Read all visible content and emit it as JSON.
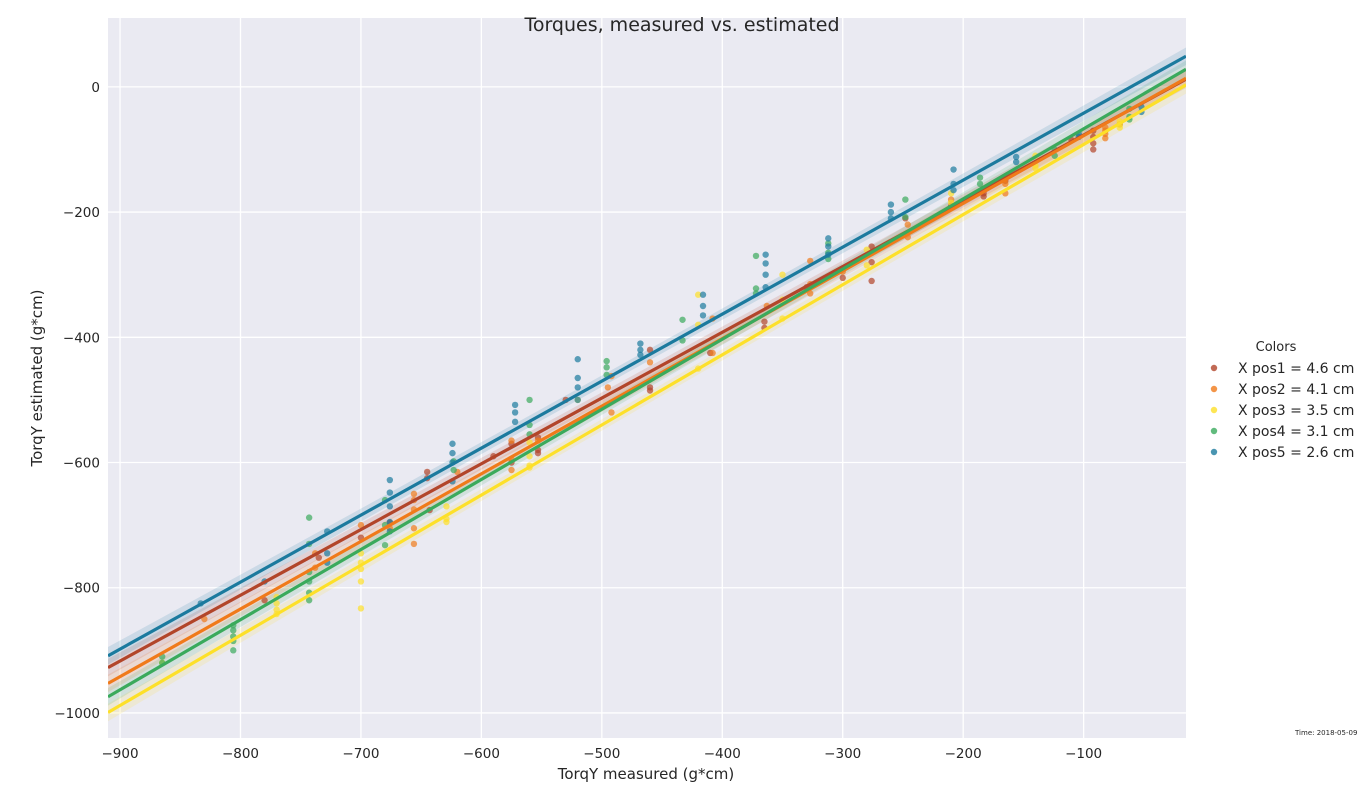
{
  "chart_data": {
    "type": "scatter",
    "title": "Torques, measured vs. estimated",
    "xlabel": "TorqY measured (g*cm)",
    "ylabel": "TorqY estimated (g*cm)",
    "xlim": [
      -910,
      -15
    ],
    "ylim": [
      -1040,
      110
    ],
    "xticks": [
      -900,
      -800,
      -700,
      -600,
      -500,
      -400,
      -300,
      -200,
      -100
    ],
    "yticks": [
      0,
      -200,
      -400,
      -600,
      -800,
      -1000
    ],
    "grid": true,
    "background": "#eaeaf2",
    "legend": {
      "title": "Colors",
      "position": "right"
    },
    "time_label": "Time: 2018-05-09",
    "series": [
      {
        "name": "X pos1 = 4.6 cm",
        "color": "#b2452a",
        "fit": {
          "slope": 1.05,
          "intercept": 28
        },
        "points": [
          [
            -780,
            -820
          ],
          [
            -735,
            -752
          ],
          [
            -700,
            -720
          ],
          [
            -676,
            -696
          ],
          [
            -645,
            -615
          ],
          [
            -645,
            -625
          ],
          [
            -643,
            -676
          ],
          [
            -590,
            -590
          ],
          [
            -575,
            -570
          ],
          [
            -575,
            -600
          ],
          [
            -553,
            -560
          ],
          [
            -553,
            -580
          ],
          [
            -553,
            -585
          ],
          [
            -530,
            -500
          ],
          [
            -460,
            -420
          ],
          [
            -460,
            -480
          ],
          [
            -460,
            -485
          ],
          [
            -410,
            -425
          ],
          [
            -365,
            -375
          ],
          [
            -365,
            -385
          ],
          [
            -330,
            -320
          ],
          [
            -300,
            -305
          ],
          [
            -276,
            -255
          ],
          [
            -276,
            -265
          ],
          [
            -276,
            -280
          ],
          [
            -276,
            -310
          ],
          [
            -248,
            -210
          ],
          [
            -210,
            -190
          ],
          [
            -183,
            -170
          ],
          [
            -183,
            -175
          ],
          [
            -165,
            -150
          ],
          [
            -110,
            -85
          ],
          [
            -92,
            -70
          ],
          [
            -92,
            -80
          ],
          [
            -92,
            -90
          ],
          [
            -92,
            -100
          ],
          [
            -70,
            -60
          ]
        ]
      },
      {
        "name": "X pos2 = 4.1 cm",
        "color": "#f07a1a",
        "fit": {
          "slope": 1.08,
          "intercept": 30
        },
        "points": [
          [
            -830,
            -850
          ],
          [
            -738,
            -745
          ],
          [
            -738,
            -768
          ],
          [
            -700,
            -700
          ],
          [
            -676,
            -705
          ],
          [
            -656,
            -650
          ],
          [
            -656,
            -660
          ],
          [
            -656,
            -675
          ],
          [
            -656,
            -705
          ],
          [
            -656,
            -730
          ],
          [
            -620,
            -615
          ],
          [
            -575,
            -565
          ],
          [
            -575,
            -595
          ],
          [
            -575,
            -612
          ],
          [
            -553,
            -565
          ],
          [
            -495,
            -480
          ],
          [
            -492,
            -462
          ],
          [
            -492,
            -520
          ],
          [
            -460,
            -440
          ],
          [
            -408,
            -370
          ],
          [
            -408,
            -425
          ],
          [
            -363,
            -350
          ],
          [
            -327,
            -278
          ],
          [
            -327,
            -315
          ],
          [
            -327,
            -330
          ],
          [
            -300,
            -295
          ],
          [
            -246,
            -220
          ],
          [
            -246,
            -240
          ],
          [
            -210,
            -180
          ],
          [
            -165,
            -148
          ],
          [
            -165,
            -155
          ],
          [
            -165,
            -170
          ],
          [
            -82,
            -65
          ],
          [
            -82,
            -70
          ],
          [
            -82,
            -75
          ],
          [
            -82,
            -82
          ]
        ]
      },
      {
        "name": "X pos3 = 3.5 cm",
        "color": "#fde029",
        "fit": {
          "slope": 1.12,
          "intercept": 20
        },
        "points": [
          [
            -865,
            -920
          ],
          [
            -770,
            -815
          ],
          [
            -770,
            -825
          ],
          [
            -770,
            -835
          ],
          [
            -770,
            -842
          ],
          [
            -700,
            -745
          ],
          [
            -700,
            -760
          ],
          [
            -700,
            -770
          ],
          [
            -700,
            -790
          ],
          [
            -700,
            -833
          ],
          [
            -629,
            -670
          ],
          [
            -629,
            -690
          ],
          [
            -629,
            -695
          ],
          [
            -560,
            -568
          ],
          [
            -560,
            -590
          ],
          [
            -560,
            -605
          ],
          [
            -560,
            -608
          ],
          [
            -520,
            -500
          ],
          [
            -420,
            -332
          ],
          [
            -420,
            -380
          ],
          [
            -420,
            -450
          ],
          [
            -350,
            -300
          ],
          [
            -350,
            -340
          ],
          [
            -350,
            -370
          ],
          [
            -280,
            -260
          ],
          [
            -280,
            -285
          ],
          [
            -210,
            -170
          ],
          [
            -210,
            -185
          ],
          [
            -140,
            -110
          ],
          [
            -140,
            -125
          ],
          [
            -140,
            -130
          ],
          [
            -70,
            -55
          ],
          [
            -70,
            -60
          ],
          [
            -70,
            -65
          ]
        ]
      },
      {
        "name": "X pos4 = 3.1 cm",
        "color": "#3aaa5c",
        "fit": {
          "slope": 1.12,
          "intercept": 45
        },
        "points": [
          [
            -865,
            -910
          ],
          [
            -865,
            -920
          ],
          [
            -806,
            -860
          ],
          [
            -806,
            -868
          ],
          [
            -806,
            -878
          ],
          [
            -806,
            -885
          ],
          [
            -806,
            -900
          ],
          [
            -743,
            -688
          ],
          [
            -743,
            -730
          ],
          [
            -743,
            -775
          ],
          [
            -743,
            -790
          ],
          [
            -743,
            -808
          ],
          [
            -743,
            -820
          ],
          [
            -680,
            -660
          ],
          [
            -680,
            -700
          ],
          [
            -680,
            -732
          ],
          [
            -623,
            -598
          ],
          [
            -623,
            -612
          ],
          [
            -560,
            -500
          ],
          [
            -560,
            -540
          ],
          [
            -560,
            -555
          ],
          [
            -496,
            -438
          ],
          [
            -496,
            -448
          ],
          [
            -496,
            -460
          ],
          [
            -433,
            -372
          ],
          [
            -433,
            -405
          ],
          [
            -372,
            -270
          ],
          [
            -372,
            -322
          ],
          [
            -372,
            -330
          ],
          [
            -312,
            -250
          ],
          [
            -312,
            -265
          ],
          [
            -312,
            -275
          ],
          [
            -248,
            -180
          ],
          [
            -248,
            -208
          ],
          [
            -186,
            -145
          ],
          [
            -186,
            -155
          ],
          [
            -124,
            -100
          ],
          [
            -124,
            -110
          ],
          [
            -62,
            -35
          ],
          [
            -62,
            -48
          ],
          [
            -62,
            -52
          ]
        ]
      },
      {
        "name": "X pos5 = 2.6 cm",
        "color": "#1b7a9e",
        "fit": {
          "slope": 1.07,
          "intercept": 65
        },
        "points": [
          [
            -833,
            -825
          ],
          [
            -780,
            -790
          ],
          [
            -728,
            -710
          ],
          [
            -728,
            -745
          ],
          [
            -728,
            -760
          ],
          [
            -676,
            -628
          ],
          [
            -676,
            -648
          ],
          [
            -676,
            -670
          ],
          [
            -676,
            -695
          ],
          [
            -676,
            -710
          ],
          [
            -624,
            -570
          ],
          [
            -624,
            -585
          ],
          [
            -624,
            -600
          ],
          [
            -624,
            -630
          ],
          [
            -572,
            -508
          ],
          [
            -572,
            -520
          ],
          [
            -572,
            -535
          ],
          [
            -520,
            -435
          ],
          [
            -520,
            -465
          ],
          [
            -520,
            -480
          ],
          [
            -520,
            -500
          ],
          [
            -468,
            -410
          ],
          [
            -468,
            -420
          ],
          [
            -468,
            -428
          ],
          [
            -416,
            -332
          ],
          [
            -416,
            -350
          ],
          [
            -416,
            -365
          ],
          [
            -364,
            -268
          ],
          [
            -364,
            -282
          ],
          [
            -364,
            -300
          ],
          [
            -364,
            -320
          ],
          [
            -312,
            -242
          ],
          [
            -312,
            -255
          ],
          [
            -312,
            -268
          ],
          [
            -260,
            -188
          ],
          [
            -260,
            -200
          ],
          [
            -260,
            -210
          ],
          [
            -208,
            -132
          ],
          [
            -208,
            -155
          ],
          [
            -208,
            -165
          ],
          [
            -156,
            -112
          ],
          [
            -156,
            -120
          ],
          [
            -104,
            -75
          ],
          [
            -104,
            -80
          ],
          [
            -52,
            -32
          ],
          [
            -52,
            -40
          ]
        ]
      }
    ]
  }
}
